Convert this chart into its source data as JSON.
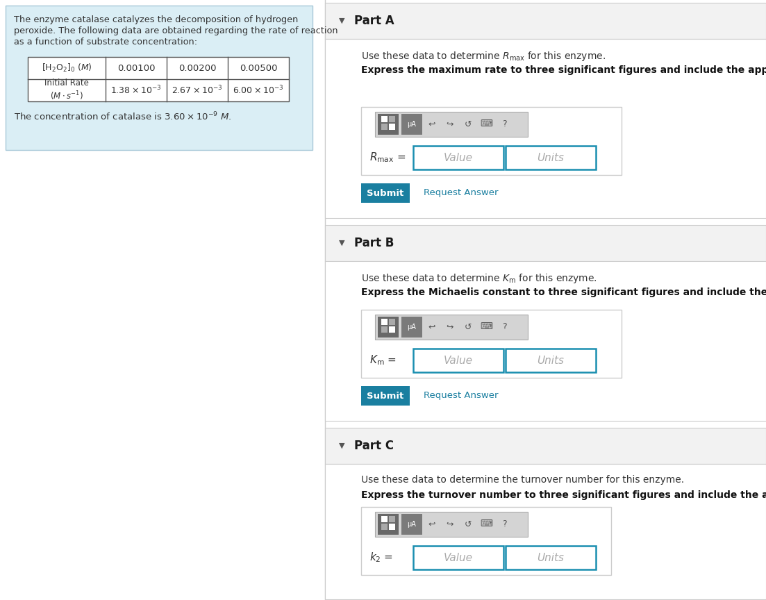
{
  "bg_color": "#ffffff",
  "left_panel_bg": "#daeef5",
  "left_panel_border": "#a8c8d8",
  "intro_text_lines": [
    "The enzyme catalase catalyzes the decomposition of hydrogen",
    "peroxide. The following data are obtained regarding the rate of reaction",
    "as a function of substrate concentration:"
  ],
  "table_data_row0": [
    "0.00100",
    "0.00200",
    "0.00500"
  ],
  "part_a_header": "Part A",
  "part_a_desc": "Use these data to determine $R_{\\mathrm{max}}$ for this enzyme.",
  "part_a_bold": "Express the maximum rate to three significant figures and include the appropriate units.",
  "part_a_label": "$R_{\\mathrm{max}}$ =",
  "part_b_header": "Part B",
  "part_b_desc": "Use these data to determine $K_{\\mathrm{m}}$ for this enzyme.",
  "part_b_bold": "Express the Michaelis constant to three significant figures and include the appropriate units.",
  "part_b_label": "$K_{\\mathrm{m}}$ =",
  "part_c_header": "Part C",
  "part_c_desc": "Use these data to determine the turnover number for this enzyme.",
  "part_c_bold": "Express the turnover number to three significant figures and include the appropriate units.",
  "part_c_label": "$k_2$ =",
  "submit_bg": "#1a7fa0",
  "request_answer_color": "#1a7fa0",
  "part_header_bg": "#f2f2f2",
  "input_border": "#1a8fb0",
  "panel_border": "#cccccc",
  "toolbar_bg": "#d4d4d4",
  "btn_dark": "#686868",
  "btn_mid": "#7a7a7a",
  "icon_color": "#555555",
  "table_border": "#555555",
  "text_color": "#333333",
  "bold_color": "#111111",
  "arrow_color": "#555555",
  "placeholder_color": "#aaaaaa"
}
